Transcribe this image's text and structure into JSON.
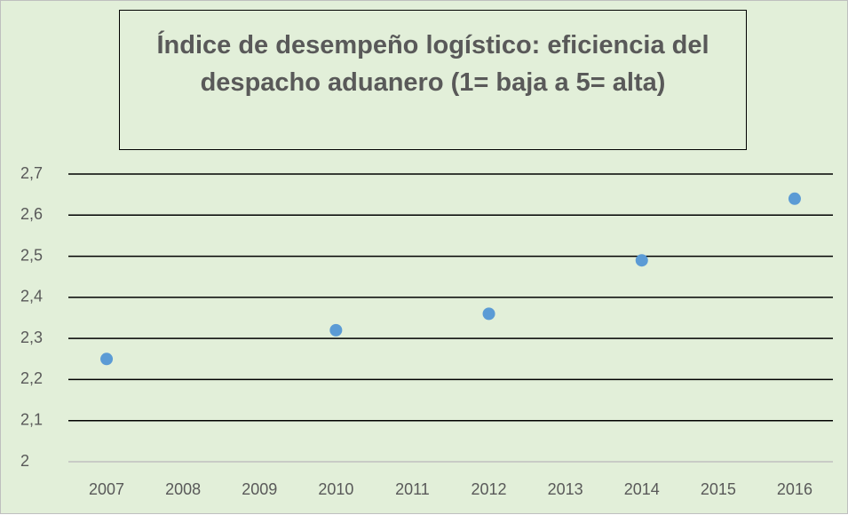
{
  "chart_data": {
    "type": "scatter",
    "title": "Índice de desempeño logístico: eficiencia del despacho aduanero (1= baja a 5= alta)",
    "categories": [
      "2007",
      "2008",
      "2009",
      "2010",
      "2011",
      "2012",
      "2013",
      "2014",
      "2015",
      "2016"
    ],
    "values": [
      2.25,
      null,
      null,
      2.32,
      null,
      2.36,
      null,
      2.49,
      null,
      2.64
    ],
    "color": "#5b9bd5",
    "ylim": [
      2,
      2.7
    ],
    "yticks": [
      2,
      {
        "value": 2.1,
        "label": "2,1"
      },
      {
        "value": 2.2,
        "label": "2,2"
      },
      {
        "value": 2.3,
        "label": "2,3"
      },
      {
        "value": 2.4,
        "label": "2,4"
      },
      {
        "value": 2.5,
        "label": "2,5"
      },
      {
        "value": 2.6,
        "label": "2,6"
      },
      {
        "value": 2.7,
        "label": "2,7"
      }
    ],
    "grid": true
  }
}
